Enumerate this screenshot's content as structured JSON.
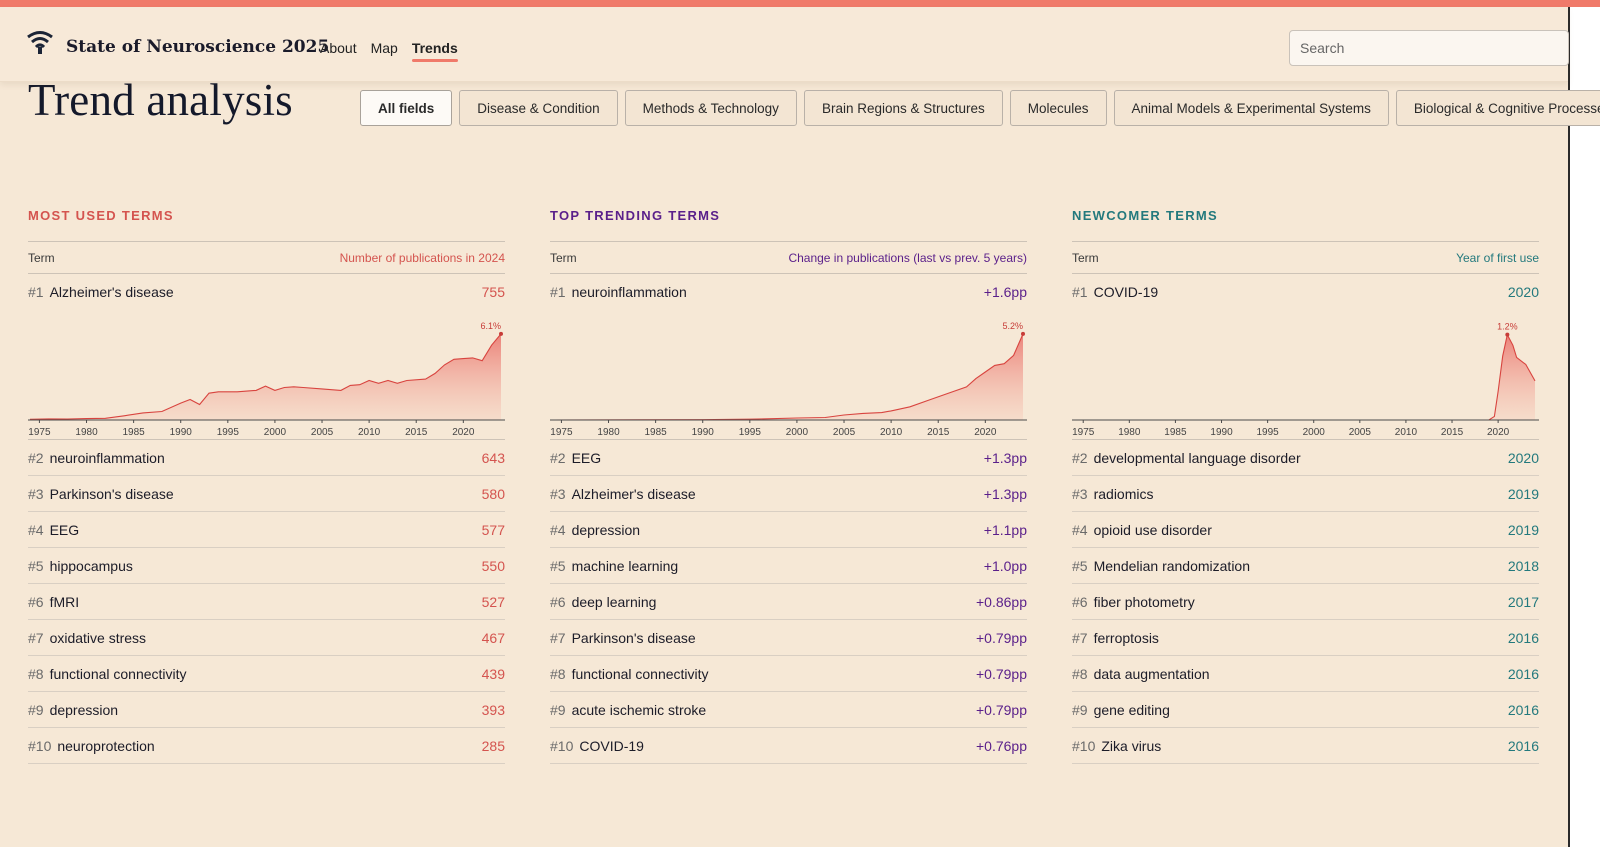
{
  "header": {
    "site_title": "State of Neuroscience 2025",
    "nav": [
      {
        "label": "About",
        "active": false
      },
      {
        "label": "Map",
        "active": false
      },
      {
        "label": "Trends",
        "active": true
      }
    ],
    "search_placeholder": "Search",
    "logo_icon": "fountain-logo-icon"
  },
  "page": {
    "title": "Trend analysis",
    "filters": [
      {
        "label": "All fields",
        "active": true
      },
      {
        "label": "Disease & Condition",
        "active": false
      },
      {
        "label": "Methods & Technology",
        "active": false
      },
      {
        "label": "Brain Regions & Structures",
        "active": false
      },
      {
        "label": "Molecules",
        "active": false
      },
      {
        "label": "Animal Models & Experimental Systems",
        "active": false
      },
      {
        "label": "Biological & Cognitive Processes",
        "active": false
      }
    ]
  },
  "colors": {
    "accent_red": "#d4544f",
    "accent_purple": "#5a1f8a",
    "accent_teal": "#23797d",
    "background": "#f6e8d6",
    "top_stripe": "#f07a6a"
  },
  "columns": [
    {
      "title": "MOST USED TERMS",
      "color": "red",
      "term_header": "Term",
      "value_header": "Number of publications in 2024",
      "rows": [
        {
          "rank": "#1",
          "term": "Alzheimer's disease",
          "value": "755"
        },
        {
          "rank": "#2",
          "term": "neuroinflammation",
          "value": "643"
        },
        {
          "rank": "#3",
          "term": "Parkinson's disease",
          "value": "580"
        },
        {
          "rank": "#4",
          "term": "EEG",
          "value": "577"
        },
        {
          "rank": "#5",
          "term": "hippocampus",
          "value": "550"
        },
        {
          "rank": "#6",
          "term": "fMRI",
          "value": "527"
        },
        {
          "rank": "#7",
          "term": "oxidative stress",
          "value": "467"
        },
        {
          "rank": "#8",
          "term": "functional connectivity",
          "value": "439"
        },
        {
          "rank": "#9",
          "term": "depression",
          "value": "393"
        },
        {
          "rank": "#10",
          "term": "neuroprotection",
          "value": "285"
        }
      ]
    },
    {
      "title": "TOP TRENDING TERMS",
      "color": "purple",
      "term_header": "Term",
      "value_header": "Change in publications (last vs prev. 5 years)",
      "rows": [
        {
          "rank": "#1",
          "term": "neuroinflammation",
          "value": "+1.6pp"
        },
        {
          "rank": "#2",
          "term": "EEG",
          "value": "+1.3pp"
        },
        {
          "rank": "#3",
          "term": "Alzheimer's disease",
          "value": "+1.3pp"
        },
        {
          "rank": "#4",
          "term": "depression",
          "value": "+1.1pp"
        },
        {
          "rank": "#5",
          "term": "machine learning",
          "value": "+1.0pp"
        },
        {
          "rank": "#6",
          "term": "deep learning",
          "value": "+0.86pp"
        },
        {
          "rank": "#7",
          "term": "Parkinson's disease",
          "value": "+0.79pp"
        },
        {
          "rank": "#8",
          "term": "functional connectivity",
          "value": "+0.79pp"
        },
        {
          "rank": "#9",
          "term": "acute ischemic stroke",
          "value": "+0.79pp"
        },
        {
          "rank": "#10",
          "term": "COVID-19",
          "value": "+0.76pp"
        }
      ]
    },
    {
      "title": "NEWCOMER TERMS",
      "color": "teal",
      "term_header": "Term",
      "value_header": "Year of first use",
      "rows": [
        {
          "rank": "#1",
          "term": "COVID-19",
          "value": "2020"
        },
        {
          "rank": "#2",
          "term": "developmental language disorder",
          "value": "2020"
        },
        {
          "rank": "#3",
          "term": "radiomics",
          "value": "2019"
        },
        {
          "rank": "#4",
          "term": "opioid use disorder",
          "value": "2019"
        },
        {
          "rank": "#5",
          "term": "Mendelian randomization",
          "value": "2018"
        },
        {
          "rank": "#6",
          "term": "fiber photometry",
          "value": "2017"
        },
        {
          "rank": "#7",
          "term": "ferroptosis",
          "value": "2016"
        },
        {
          "rank": "#8",
          "term": "data augmentation",
          "value": "2016"
        },
        {
          "rank": "#9",
          "term": "gene editing",
          "value": "2016"
        },
        {
          "rank": "#10",
          "term": "Zika virus",
          "value": "2016"
        }
      ]
    }
  ],
  "chart_data": [
    {
      "type": "area",
      "xlim": [
        1974,
        2024
      ],
      "x_ticks": [
        "1975",
        "1980",
        "1985",
        "1990",
        "1995",
        "2000",
        "2005",
        "2010",
        "2015",
        "2020"
      ],
      "peak_label": "6.1%",
      "points": [
        [
          1974,
          0.05
        ],
        [
          1976,
          0.08
        ],
        [
          1978,
          0.07
        ],
        [
          1980,
          0.1
        ],
        [
          1982,
          0.12
        ],
        [
          1984,
          0.3
        ],
        [
          1986,
          0.5
        ],
        [
          1988,
          0.6
        ],
        [
          1990,
          1.2
        ],
        [
          1991,
          1.45
        ],
        [
          1992,
          1.1
        ],
        [
          1993,
          1.9
        ],
        [
          1994,
          2.0
        ],
        [
          1996,
          2.0
        ],
        [
          1998,
          2.1
        ],
        [
          1999,
          2.4
        ],
        [
          2000,
          2.1
        ],
        [
          2001,
          2.3
        ],
        [
          2002,
          2.35
        ],
        [
          2003,
          2.3
        ],
        [
          2005,
          2.2
        ],
        [
          2007,
          2.1
        ],
        [
          2008,
          2.45
        ],
        [
          2009,
          2.5
        ],
        [
          2010,
          2.8
        ],
        [
          2011,
          2.6
        ],
        [
          2012,
          2.8
        ],
        [
          2013,
          2.6
        ],
        [
          2014,
          2.8
        ],
        [
          2016,
          2.9
        ],
        [
          2017,
          3.3
        ],
        [
          2018,
          3.9
        ],
        [
          2019,
          4.3
        ],
        [
          2020,
          4.35
        ],
        [
          2021,
          4.4
        ],
        [
          2022,
          4.2
        ],
        [
          2023,
          5.3
        ],
        [
          2024,
          6.1
        ]
      ],
      "ylim": [
        0,
        6.8
      ]
    },
    {
      "type": "area",
      "xlim": [
        1974,
        2024
      ],
      "x_ticks": [
        "1975",
        "1980",
        "1985",
        "1990",
        "1995",
        "2000",
        "2005",
        "2010",
        "2015",
        "2020"
      ],
      "peak_label": "5.2%",
      "points": [
        [
          1974,
          0
        ],
        [
          1990,
          0.02
        ],
        [
          1995,
          0.05
        ],
        [
          2000,
          0.12
        ],
        [
          2003,
          0.15
        ],
        [
          2005,
          0.3
        ],
        [
          2007,
          0.4
        ],
        [
          2009,
          0.45
        ],
        [
          2010,
          0.55
        ],
        [
          2012,
          0.8
        ],
        [
          2014,
          1.2
        ],
        [
          2016,
          1.6
        ],
        [
          2018,
          2.0
        ],
        [
          2019,
          2.5
        ],
        [
          2020,
          2.9
        ],
        [
          2021,
          3.3
        ],
        [
          2022,
          3.4
        ],
        [
          2023,
          3.9
        ],
        [
          2024,
          5.2
        ]
      ],
      "ylim": [
        0,
        5.8
      ]
    },
    {
      "type": "area",
      "xlim": [
        1974,
        2024
      ],
      "x_ticks": [
        "1975",
        "1980",
        "1985",
        "1990",
        "1995",
        "2000",
        "2005",
        "2010",
        "2015",
        "2020"
      ],
      "peak_label": "1.2%",
      "points": [
        [
          1974,
          0
        ],
        [
          2019,
          0
        ],
        [
          2019.6,
          0.05
        ],
        [
          2020,
          0.4
        ],
        [
          2020.5,
          0.9
        ],
        [
          2021,
          1.2
        ],
        [
          2021.6,
          1.05
        ],
        [
          2022,
          0.88
        ],
        [
          2023,
          0.78
        ],
        [
          2024,
          0.55
        ]
      ],
      "ylim": [
        0,
        1.35
      ]
    }
  ]
}
